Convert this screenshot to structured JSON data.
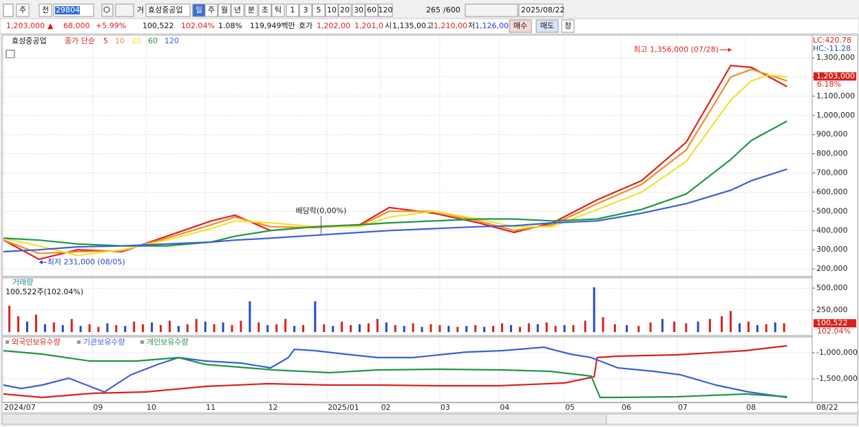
{
  "toolbar": {
    "view": "주",
    "scope": "전",
    "code": "298040",
    "kind": "거",
    "name": "효성중공업",
    "periods": [
      "일",
      "주",
      "월",
      "년",
      "분",
      "초",
      "틱"
    ],
    "intervals": [
      "1",
      "3",
      "5",
      "10",
      "20",
      "30",
      "60",
      "120"
    ],
    "count": "265",
    "max": "/600",
    "date": "2025/08/22"
  },
  "quote": {
    "price": "1,203,000",
    "arrow": "▲",
    "change": "68,000",
    "rate": "+5.99%",
    "volume": "100,522",
    "volume_rate": "102.04%",
    "turnover": "1.08%",
    "amount": "119,949백만",
    "ask_label": "호가",
    "ask": "1,202,00",
    "bid": "1,201,0",
    "open_label": "시",
    "open": "1,135,00",
    "high_label": "고",
    "high": "1,210,00",
    "low_label": "저",
    "low": "1,126,00",
    "buy": "매수",
    "sell": "매도",
    "fix": "정"
  },
  "chart_data": [
    {
      "type": "line",
      "name": "효성중공업",
      "legend_label": "종가 단순",
      "lc": "LC:420.78",
      "hc": "HC:-11.28",
      "grid": true,
      "xlim": [
        0,
        272
      ],
      "x": [
        0,
        12,
        25,
        40,
        55,
        70,
        78,
        90,
        105,
        120,
        130,
        145,
        160,
        172,
        185,
        200,
        215,
        230,
        245,
        252,
        258,
        264
      ],
      "ylim": [
        168000,
        1415000
      ],
      "yticks": [
        {
          "value": 200000,
          "label": "200,000"
        },
        {
          "value": 300000,
          "label": "300,000"
        },
        {
          "value": 400000,
          "label": "400,000"
        },
        {
          "value": 500000,
          "label": "500,000"
        },
        {
          "value": 600000,
          "label": "600,000"
        },
        {
          "value": 700000,
          "label": "700,000"
        },
        {
          "value": 800000,
          "label": "800,000"
        },
        {
          "value": 900000,
          "label": "900,000"
        },
        {
          "value": 1000000,
          "label": "1,000,000"
        },
        {
          "value": 1100000,
          "label": "1,100,000"
        },
        {
          "value": 1200000,
          "label": "1,200,000"
        },
        {
          "value": 1300000,
          "label": "1,300,000"
        }
      ],
      "series": [
        {
          "name": "5",
          "color": "#e0201c",
          "values": [
            350000,
            250000,
            300000,
            290000,
            370000,
            450000,
            480000,
            400000,
            420000,
            430000,
            520000,
            490000,
            440000,
            390000,
            440000,
            560000,
            660000,
            860000,
            1260000,
            1250000,
            1200000,
            1150000
          ]
        },
        {
          "name": "10",
          "color": "#f08c28",
          "values": [
            350000,
            280000,
            290000,
            295000,
            360000,
            430000,
            470000,
            420000,
            415000,
            425000,
            500000,
            500000,
            450000,
            400000,
            430000,
            540000,
            640000,
            820000,
            1200000,
            1240000,
            1210000,
            1180000
          ]
        },
        {
          "name": "20",
          "color": "#f2e22c",
          "values": [
            360000,
            320000,
            270000,
            300000,
            350000,
            410000,
            450000,
            440000,
            420000,
            420000,
            470000,
            500000,
            460000,
            420000,
            420000,
            510000,
            600000,
            760000,
            1080000,
            1180000,
            1210000,
            1200000
          ]
        },
        {
          "name": "60",
          "color": "#1e9646",
          "values": [
            360000,
            350000,
            330000,
            320000,
            320000,
            340000,
            370000,
            400000,
            420000,
            430000,
            440000,
            450000,
            460000,
            460000,
            450000,
            460000,
            510000,
            590000,
            770000,
            870000,
            920000,
            970000
          ]
        },
        {
          "name": "120",
          "color": "#3a5fd8",
          "values": [
            290000,
            300000,
            315000,
            320000,
            330000,
            340000,
            350000,
            360000,
            375000,
            390000,
            400000,
            410000,
            420000,
            425000,
            440000,
            450000,
            490000,
            540000,
            610000,
            660000,
            690000,
            720000
          ]
        }
      ],
      "last": {
        "value": 1203000,
        "label": "1,203,000"
      },
      "last_change": "6.18%",
      "annotations": [
        {
          "label": "최고 1,356,000 (07/28)",
          "x": 246,
          "value": 1356000
        },
        {
          "label": "최저 231,000 (08/05)",
          "x": 12,
          "value": 231000
        },
        {
          "label": "배당락(0,00%)",
          "x": 107
        }
      ]
    },
    {
      "type": "bar",
      "title": "거래량",
      "subtitle": "100,522주(102.04%)",
      "xlim": [
        0,
        272
      ],
      "x": [
        2,
        5,
        8,
        11,
        14,
        17,
        20,
        23,
        26,
        29,
        32,
        35,
        38,
        41,
        44,
        47,
        50,
        53,
        56,
        59,
        62,
        65,
        68,
        71,
        74,
        77,
        80,
        83,
        86,
        89,
        92,
        95,
        98,
        101,
        105,
        108,
        111,
        114,
        117,
        120,
        123,
        126,
        129,
        132,
        135,
        138,
        141,
        144,
        147,
        150,
        153,
        156,
        159,
        162,
        165,
        168,
        171,
        174,
        177,
        180,
        183,
        186,
        189,
        192,
        196,
        199,
        202,
        206,
        210,
        214,
        218,
        222,
        226,
        230,
        234,
        238,
        242,
        245,
        248,
        251,
        254,
        257,
        260,
        263
      ],
      "values": [
        300000,
        180000,
        120000,
        200000,
        90000,
        110000,
        80000,
        150000,
        70000,
        90000,
        60000,
        100000,
        80000,
        70000,
        120000,
        90000,
        110000,
        80000,
        130000,
        70000,
        90000,
        150000,
        120000,
        90000,
        110000,
        80000,
        130000,
        350000,
        110000,
        80000,
        90000,
        150000,
        70000,
        80000,
        350000,
        90000,
        70000,
        120000,
        80000,
        90000,
        100000,
        150000,
        110000,
        80000,
        70000,
        100000,
        60000,
        90000,
        80000,
        70000,
        60000,
        70000,
        80000,
        60000,
        70000,
        100000,
        80000,
        60000,
        100000,
        90000,
        110000,
        70000,
        80000,
        80000,
        130000,
        510000,
        170000,
        90000,
        80000,
        70000,
        110000,
        150000,
        120000,
        100000,
        120000,
        150000,
        180000,
        240000,
        100000,
        120000,
        80000,
        90000,
        110000,
        100000
      ],
      "colors": [
        "#d8221c",
        "#d8221c",
        "#2448c8",
        "#d8221c",
        "#2448c8",
        "#d8221c",
        "#2448c8",
        "#d8221c",
        "#2448c8",
        "#d8221c",
        "#d8221c",
        "#2448c8",
        "#d8221c",
        "#2448c8",
        "#d8221c",
        "#d8221c",
        "#2448c8",
        "#d8221c",
        "#d8221c",
        "#2448c8",
        "#d8221c",
        "#d8221c",
        "#2448c8",
        "#d8221c",
        "#2448c8",
        "#d8221c",
        "#d8221c",
        "#2448c8",
        "#d8221c",
        "#2448c8",
        "#d8221c",
        "#d8221c",
        "#2448c8",
        "#d8221c",
        "#2448c8",
        "#d8221c",
        "#2448c8",
        "#d8221c",
        "#d8221c",
        "#2448c8",
        "#d8221c",
        "#d8221c",
        "#2448c8",
        "#d8221c",
        "#2448c8",
        "#d8221c",
        "#2448c8",
        "#d8221c",
        "#d8221c",
        "#2448c8",
        "#d8221c",
        "#2448c8",
        "#d8221c",
        "#2448c8",
        "#d8221c",
        "#d8221c",
        "#2448c8",
        "#d8221c",
        "#d8221c",
        "#2448c8",
        "#d8221c",
        "#d8221c",
        "#2448c8",
        "#d8221c",
        "#d8221c",
        "#2448c8",
        "#d8221c",
        "#d8221c",
        "#2448c8",
        "#d8221c",
        "#d8221c",
        "#2448c8",
        "#d8221c",
        "#d8221c",
        "#2448c8",
        "#d8221c",
        "#d8221c",
        "#d8221c",
        "#2448c8",
        "#d8221c",
        "#2448c8",
        "#d8221c",
        "#2448c8",
        "#d8221c"
      ],
      "ylim": [
        0,
        540000
      ],
      "yticks": [
        {
          "value": 250000,
          "label": "250,000"
        },
        {
          "value": 500000,
          "label": "500,000"
        }
      ],
      "last": {
        "value": 100522,
        "label": "100,522"
      },
      "last_change": "102.04%"
    },
    {
      "type": "line",
      "xlim": [
        0,
        272
      ],
      "ylim": [
        -1934000,
        -724000
      ],
      "yticks": [
        {
          "value": -1500000,
          "label": "-1,500,000"
        },
        {
          "value": -1000000,
          "label": "-1,000,000"
        }
      ],
      "xticks": [
        {
          "value": 0,
          "label": "2024/07"
        },
        {
          "value": 30,
          "label": "09"
        },
        {
          "value": 48,
          "label": "10"
        },
        {
          "value": 68,
          "label": "11"
        },
        {
          "value": 89,
          "label": "12"
        },
        {
          "value": 109,
          "label": "2025/01"
        },
        {
          "value": 127,
          "label": "02"
        },
        {
          "value": 147,
          "label": "03"
        },
        {
          "value": 167,
          "label": "04"
        },
        {
          "value": 189,
          "label": "05"
        },
        {
          "value": 208,
          "label": "06"
        },
        {
          "value": 227,
          "label": "07"
        },
        {
          "value": 250,
          "label": "08"
        }
      ],
      "x_end_label": "08/22",
      "series": [
        {
          "name": "외국인보유수량",
          "color": "#d8221c",
          "x": [
            0,
            13,
            30,
            48,
            68,
            89,
            110,
            126,
            147,
            167,
            189,
            199,
            200,
            207,
            227,
            250,
            264
          ],
          "values": [
            -1789000,
            -1855000,
            -1776000,
            -1750000,
            -1645000,
            -1592000,
            -1618000,
            -1618000,
            -1632000,
            -1632000,
            -1579000,
            -1461000,
            -1092000,
            -1066000,
            -1039000,
            -961000,
            -868000
          ]
        },
        {
          "name": "기관보유수량",
          "color": "#3a5fd8",
          "x": [
            0,
            6,
            13,
            22,
            34,
            43,
            52,
            59,
            68,
            80,
            90,
            96,
            98,
            105,
            115,
            126,
            138,
            156,
            168,
            182,
            191,
            198,
            201,
            207,
            219,
            228,
            240,
            251,
            264
          ],
          "values": [
            -1618000,
            -1684000,
            -1618000,
            -1487000,
            -1750000,
            -1421000,
            -1224000,
            -1092000,
            -1158000,
            -1197000,
            -1289000,
            -1092000,
            -934000,
            -961000,
            -1026000,
            -1092000,
            -1092000,
            -987000,
            -961000,
            -895000,
            -1026000,
            -1092000,
            -1158000,
            -1289000,
            -1355000,
            -1421000,
            -1618000,
            -1750000,
            -1855000
          ]
        },
        {
          "name": "개인보유수량",
          "color": "#1e9646",
          "x": [
            0,
            13,
            29,
            45,
            59,
            68,
            91,
            110,
            126,
            147,
            168,
            184,
            198,
            201,
            207,
            227,
            250,
            264
          ],
          "values": [
            -961000,
            -1026000,
            -1158000,
            -1158000,
            -1092000,
            -1224000,
            -1329000,
            -1382000,
            -1329000,
            -1316000,
            -1329000,
            -1355000,
            -1447000,
            -1855000,
            -1855000,
            -1842000,
            -1789000,
            -1842000
          ]
        }
      ]
    }
  ]
}
